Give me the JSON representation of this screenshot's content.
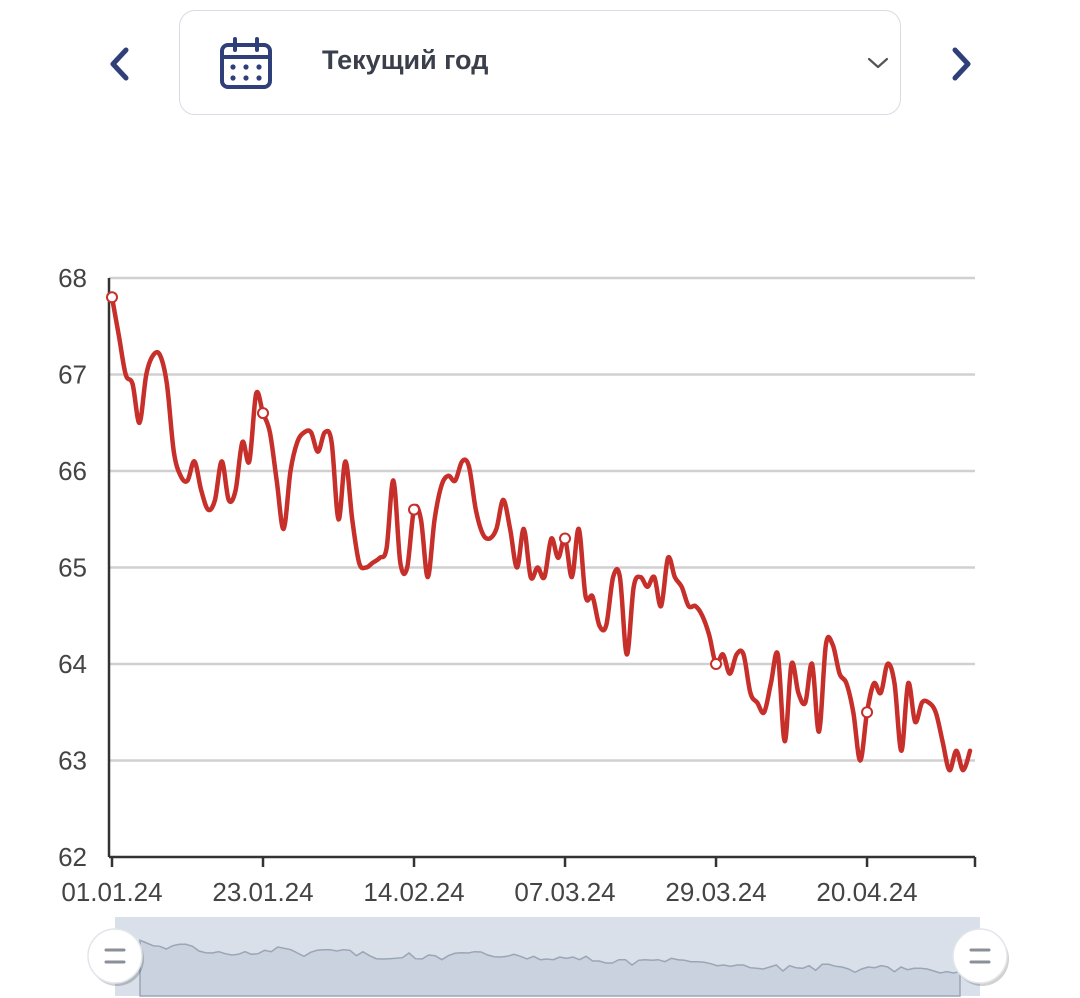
{
  "header": {
    "period_label": "Текущий год",
    "prev_icon": "chevron-left-icon",
    "next_icon": "chevron-right-icon",
    "calendar_icon": "calendar-icon",
    "dropdown_icon": "chevron-down-icon"
  },
  "colors": {
    "line": "#c62f2a",
    "grid": "#d0d0d0",
    "accent": "#2f3f7a",
    "navigator_fill": "#d9e0ea"
  },
  "chart_data": {
    "type": "line",
    "x_tick_labels": [
      "01.01.24",
      "23.01.24",
      "14.02.24",
      "07.03.24",
      "29.03.24",
      "20.04.24"
    ],
    "y_ticks": [
      62,
      63,
      64,
      65,
      66,
      67,
      68
    ],
    "ylim": [
      62,
      68
    ],
    "x_start": "01.01.24",
    "x_end": "28.04.24",
    "grid": true,
    "series": [
      {
        "values": [
          67.8,
          67.4,
          67.0,
          66.9,
          66.5,
          67.0,
          67.2,
          67.2,
          66.9,
          66.2,
          65.95,
          65.9,
          66.1,
          65.8,
          65.6,
          65.7,
          66.1,
          65.7,
          65.8,
          66.3,
          66.1,
          66.8,
          66.6,
          66.4,
          65.9,
          65.4,
          66.0,
          66.3,
          66.4,
          66.4,
          66.2,
          66.4,
          66.3,
          65.5,
          66.1,
          65.5,
          65.05,
          65.0,
          65.05,
          65.1,
          65.2,
          65.9,
          65.05,
          65.0,
          65.6,
          65.5,
          64.9,
          65.5,
          65.85,
          65.95,
          65.9,
          66.1,
          66.05,
          65.6,
          65.35,
          65.3,
          65.4,
          65.7,
          65.4,
          65.0,
          65.4,
          64.9,
          65.0,
          64.9,
          65.3,
          65.1,
          65.3,
          64.9,
          65.4,
          64.7,
          64.7,
          64.4,
          64.4,
          64.9,
          64.9,
          64.1,
          64.8,
          64.9,
          64.8,
          64.9,
          64.6,
          65.1,
          64.9,
          64.8,
          64.6,
          64.6,
          64.5,
          64.3,
          64.0,
          64.1,
          63.9,
          64.1,
          64.1,
          63.7,
          63.6,
          63.5,
          63.8,
          64.1,
          63.2,
          64.0,
          63.7,
          63.6,
          64.0,
          63.3,
          64.2,
          64.2,
          63.9,
          63.8,
          63.5,
          63.0,
          63.5,
          63.8,
          63.7,
          64.0,
          63.8,
          63.1,
          63.8,
          63.4,
          63.6,
          63.6,
          63.5,
          63.2,
          62.9,
          63.1,
          62.9,
          63.1
        ],
        "marked_points": [
          0,
          22,
          44,
          66,
          88,
          110
        ]
      }
    ]
  }
}
